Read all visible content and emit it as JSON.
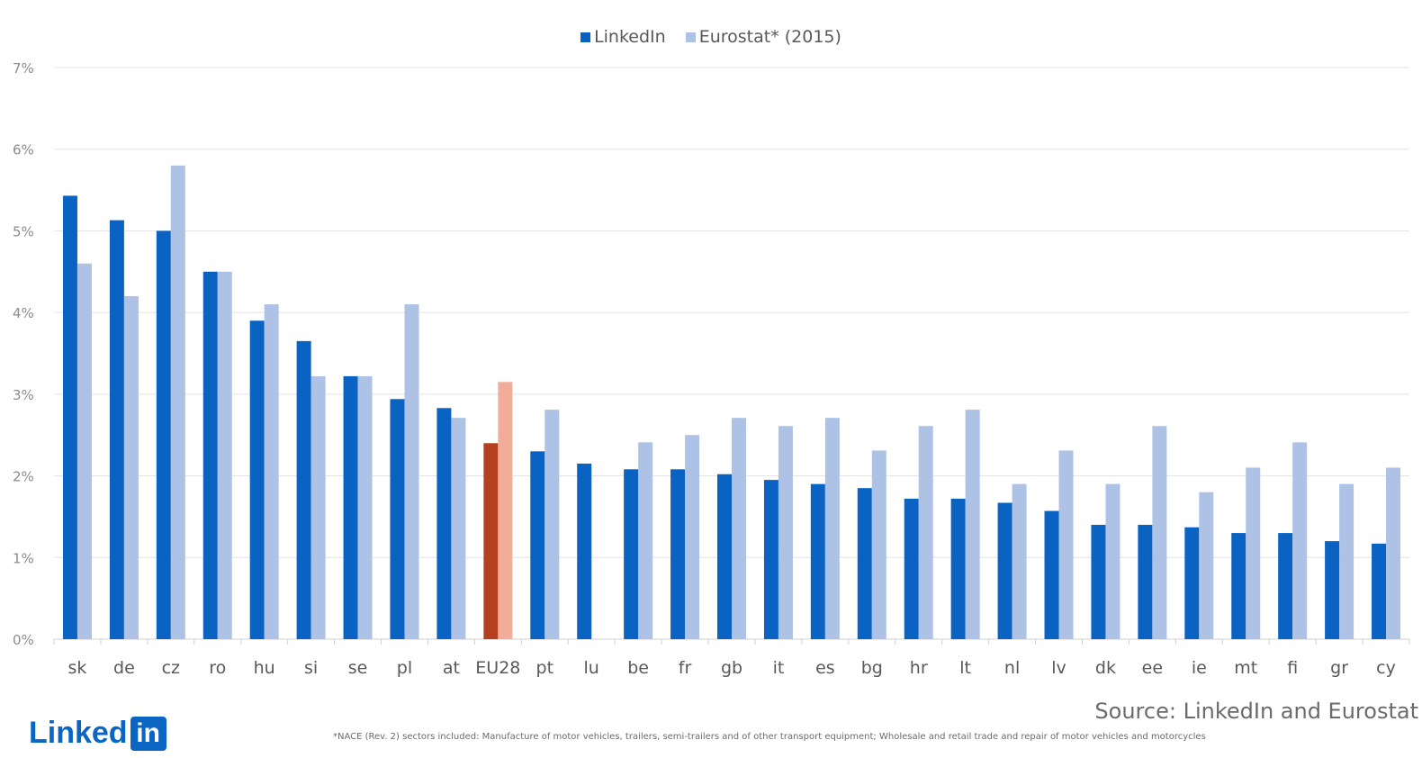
{
  "chart_data": {
    "type": "bar",
    "categories": [
      "sk",
      "de",
      "cz",
      "ro",
      "hu",
      "si",
      "se",
      "pl",
      "at",
      "EU28",
      "pt",
      "lu",
      "be",
      "fr",
      "gb",
      "it",
      "es",
      "bg",
      "hr",
      "lt",
      "nl",
      "lv",
      "dk",
      "ee",
      "ie",
      "mt",
      "fi",
      "gr",
      "cy"
    ],
    "series": [
      {
        "name": "LinkedIn",
        "values": [
          5.43,
          5.13,
          5.0,
          4.5,
          3.9,
          3.65,
          3.22,
          2.94,
          2.83,
          2.4,
          2.3,
          2.15,
          2.08,
          2.08,
          2.02,
          1.95,
          1.9,
          1.85,
          1.72,
          1.72,
          1.67,
          1.57,
          1.4,
          1.4,
          1.37,
          1.3,
          1.3,
          1.2,
          1.17
        ]
      },
      {
        "name": "Eurostat* (2015)",
        "values": [
          4.6,
          4.2,
          5.8,
          4.5,
          4.1,
          3.22,
          3.22,
          4.1,
          2.71,
          3.15,
          2.81,
          null,
          2.41,
          2.5,
          2.71,
          2.61,
          2.71,
          2.31,
          2.61,
          2.81,
          1.9,
          2.31,
          1.9,
          2.61,
          1.8,
          2.1,
          2.41,
          1.9,
          2.1
        ]
      }
    ],
    "ylim": [
      0,
      7
    ],
    "y_ticks": [
      "0%",
      "1%",
      "2%",
      "3%",
      "4%",
      "5%",
      "6%",
      "7%"
    ],
    "legend": {
      "position": "top",
      "items": [
        {
          "label": "LinkedIn",
          "color": "#0a63c3"
        },
        {
          "label": "Eurostat* (2015)",
          "color": "#aec2e6"
        }
      ]
    },
    "grid": true,
    "highlight": {
      "category": "EU28",
      "colors": [
        "#b5401f",
        "#f2ad9a"
      ]
    },
    "colors": [
      "#0a63c3",
      "#aec2e6"
    ]
  },
  "source": "Source: LinkedIn and Eurostat",
  "footnote": "*NACE (Rev. 2) sectors included: Manufacture of motor vehicles, trailers, semi-trailers and of other transport equipment; Wholesale and retail trade and repair of motor vehicles and motorcycles",
  "logo": {
    "word": "Linked",
    "box": "in"
  }
}
